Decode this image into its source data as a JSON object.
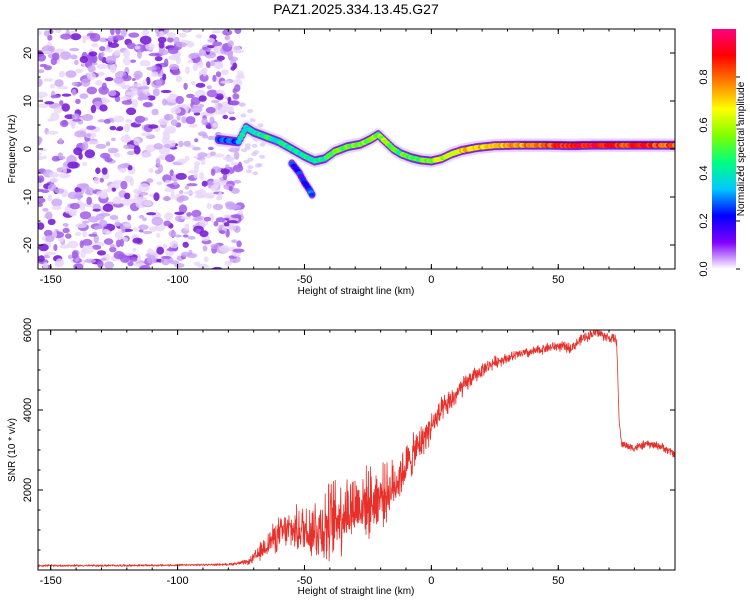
{
  "chart_data": [
    {
      "type": "heatmap",
      "title": "PAZ1.2025.334.13.45.G27",
      "xlabel": "Height of straight line (km)",
      "ylabel": "Frequency (Hz)",
      "xlim": [
        -155,
        96
      ],
      "ylim": [
        -25,
        25
      ],
      "xticks": [
        "-150",
        "-100",
        "-50",
        "0",
        "50"
      ],
      "xtick_values": [
        -150,
        -100,
        -50,
        0,
        50
      ],
      "yticks": [
        "-20",
        "-10",
        "0",
        "10",
        "20"
      ],
      "ytick_values": [
        -20,
        -10,
        0,
        10,
        20
      ],
      "noise_region_x": [
        -155,
        -75
      ],
      "signal_track": [
        {
          "x": -84,
          "y": 2.0,
          "a": 0.2
        },
        {
          "x": -76,
          "y": 1.5,
          "a": 0.3
        },
        {
          "x": -73,
          "y": 4.5,
          "a": 0.4
        },
        {
          "x": -70,
          "y": 3.5,
          "a": 0.4
        },
        {
          "x": -65,
          "y": 2.5,
          "a": 0.45
        },
        {
          "x": -60,
          "y": 1.5,
          "a": 0.4
        },
        {
          "x": -55,
          "y": 0.0,
          "a": 0.4
        },
        {
          "x": -50,
          "y": -1.5,
          "a": 0.4
        },
        {
          "x": -46,
          "y": -2.5,
          "a": 0.4
        },
        {
          "x": -42,
          "y": -2.0,
          "a": 0.45
        },
        {
          "x": -38,
          "y": -0.5,
          "a": 0.5
        },
        {
          "x": -33,
          "y": 0.5,
          "a": 0.55
        },
        {
          "x": -28,
          "y": 1.0,
          "a": 0.55
        },
        {
          "x": -24,
          "y": 2.0,
          "a": 0.55
        },
        {
          "x": -21,
          "y": 3.0,
          "a": 0.55
        },
        {
          "x": -18,
          "y": 1.5,
          "a": 0.55
        },
        {
          "x": -15,
          "y": 0.0,
          "a": 0.5
        },
        {
          "x": -12,
          "y": -1.0,
          "a": 0.5
        },
        {
          "x": -8,
          "y": -1.8,
          "a": 0.5
        },
        {
          "x": -4,
          "y": -2.3,
          "a": 0.5
        },
        {
          "x": 0,
          "y": -2.5,
          "a": 0.55
        },
        {
          "x": 4,
          "y": -2.0,
          "a": 0.6
        },
        {
          "x": 8,
          "y": -1.0,
          "a": 0.65
        },
        {
          "x": 12,
          "y": -0.3,
          "a": 0.7
        },
        {
          "x": 18,
          "y": 0.3,
          "a": 0.7
        },
        {
          "x": 25,
          "y": 0.7,
          "a": 0.7
        },
        {
          "x": 35,
          "y": 0.8,
          "a": 0.75
        },
        {
          "x": 45,
          "y": 0.8,
          "a": 0.8
        },
        {
          "x": 55,
          "y": 0.7,
          "a": 0.9
        },
        {
          "x": 65,
          "y": 0.8,
          "a": 0.9
        },
        {
          "x": 75,
          "y": 0.8,
          "a": 0.85
        },
        {
          "x": 85,
          "y": 0.8,
          "a": 0.85
        },
        {
          "x": 96,
          "y": 0.8,
          "a": 0.8
        }
      ],
      "secondary_track": [
        {
          "x": -55,
          "y": -3.0,
          "a": 0.2
        },
        {
          "x": -52,
          "y": -5.0,
          "a": 0.2
        },
        {
          "x": -50,
          "y": -7.0,
          "a": 0.2
        },
        {
          "x": -48,
          "y": -8.5,
          "a": 0.25
        },
        {
          "x": -47,
          "y": -9.5,
          "a": 0.25
        }
      ]
    },
    {
      "type": "colorbar",
      "label": "Normalized spectral amplitude",
      "range": [
        0,
        1
      ],
      "ticks": [
        "0.0",
        "0.2",
        "0.4",
        "0.6",
        "0.8"
      ],
      "tick_values": [
        0.0,
        0.2,
        0.4,
        0.6,
        0.8
      ],
      "colormap": [
        "#ffffff",
        "#8000ff",
        "#0000ff",
        "#00c8ff",
        "#00ff80",
        "#80ff00",
        "#ffff00",
        "#ff8000",
        "#ff0000",
        "#ff0080"
      ]
    },
    {
      "type": "line",
      "xlabel": "Height of straight line (km)",
      "ylabel": "SNR (10 * v/v)",
      "xlim": [
        -155,
        96
      ],
      "ylim": [
        0,
        6000
      ],
      "xticks": [
        "-150",
        "-100",
        "-50",
        "0",
        "50"
      ],
      "xtick_values": [
        -150,
        -100,
        -50,
        0,
        50
      ],
      "yticks": [
        "2000",
        "4000",
        "6000"
      ],
      "ytick_values": [
        2000,
        4000,
        6000
      ],
      "series": [
        {
          "name": "SNR",
          "color": "#e8302a",
          "x": [
            -155,
            -130,
            -100,
            -80,
            -72,
            -68,
            -64,
            -60,
            -56,
            -52,
            -48,
            -44,
            -40,
            -36,
            -32,
            -28,
            -24,
            -20,
            -16,
            -12,
            -8,
            -4,
            0,
            4,
            8,
            12,
            16,
            20,
            25,
            30,
            35,
            40,
            45,
            50,
            55,
            60,
            65,
            70,
            73,
            74,
            75,
            80,
            85,
            90,
            96
          ],
          "values": [
            110,
            110,
            120,
            140,
            200,
            400,
            700,
            900,
            1000,
            1000,
            1050,
            1050,
            1150,
            1400,
            1550,
            1650,
            1700,
            1850,
            2000,
            2400,
            2800,
            3200,
            3600,
            3950,
            4250,
            4550,
            4800,
            5000,
            5200,
            5300,
            5400,
            5450,
            5550,
            5600,
            5550,
            5800,
            5950,
            5800,
            5750,
            3700,
            3150,
            3050,
            3150,
            3100,
            2900
          ],
          "noise": [
            30,
            30,
            30,
            30,
            80,
            250,
            400,
            500,
            550,
            700,
            900,
            1100,
            1200,
            1200,
            1100,
            1000,
            1000,
            900,
            800,
            700,
            600,
            500,
            450,
            400,
            350,
            300,
            250,
            200,
            180,
            150,
            150,
            150,
            150,
            150,
            150,
            150,
            150,
            150,
            150,
            0,
            120,
            120,
            120,
            120,
            120
          ]
        }
      ]
    }
  ]
}
